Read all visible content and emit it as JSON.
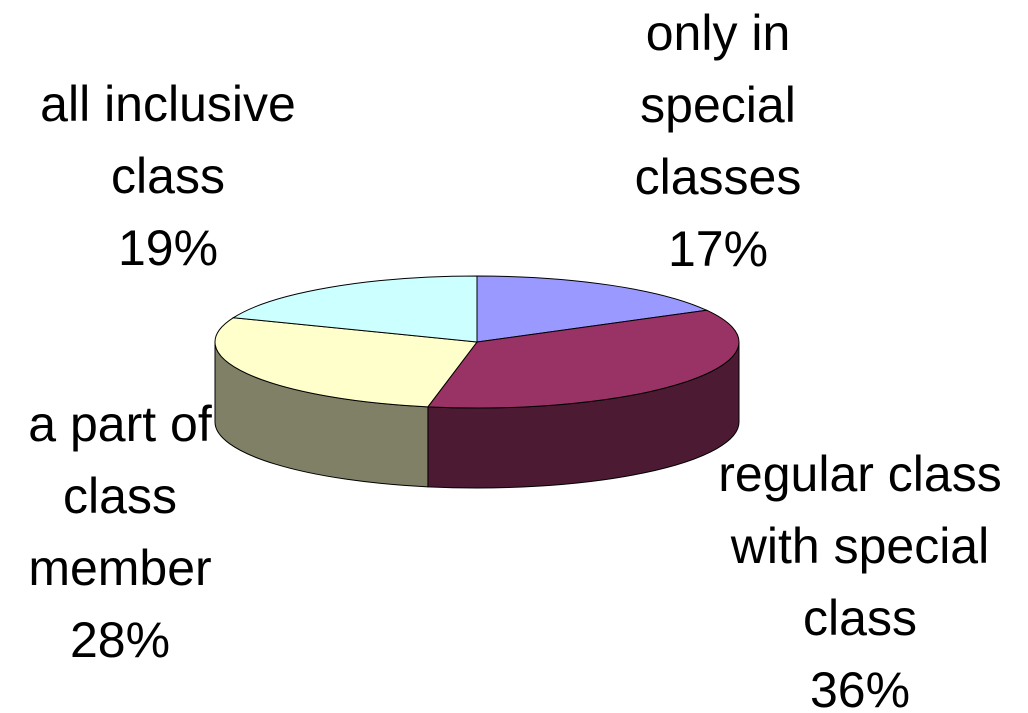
{
  "chart_data": {
    "type": "pie3d",
    "categories": [
      "only in special classes",
      "regular class with special class",
      "a part of class member",
      "all inclusive class"
    ],
    "values": [
      17,
      36,
      28,
      19
    ],
    "value_labels": [
      "17%",
      "36%",
      "28%",
      "19%"
    ],
    "colors": [
      "#9999ff",
      "#993366",
      "#ffffcc",
      "#ccffff"
    ]
  }
}
